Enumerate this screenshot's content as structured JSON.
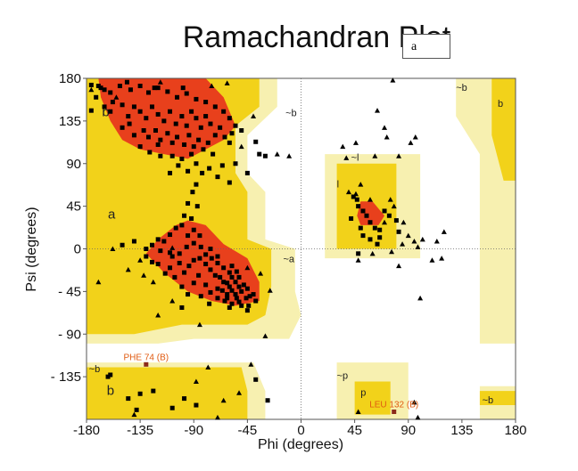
{
  "chart_data": {
    "type": "scatter",
    "title": "Ramachandran Plot",
    "xlabel": "Phi (degrees)",
    "ylabel": "Psi (degrees)",
    "xlim": [
      -180,
      180
    ],
    "ylim": [
      -180,
      180
    ],
    "x_ticks": [
      -180,
      -135,
      -90,
      -45,
      0,
      45,
      90,
      135,
      180
    ],
    "x_tick_labels": [
      "-180",
      "-135",
      "-90",
      "-45",
      "0",
      "45",
      "90",
      "135",
      "180"
    ],
    "y_ticks": [
      180,
      135,
      90,
      45,
      0,
      -45,
      -90,
      -135
    ],
    "y_tick_labels": [
      "180",
      "135",
      "90",
      "45",
      "0",
      "- 45",
      "- 90",
      "- 135"
    ],
    "grid": false,
    "zero_lines": true,
    "colors": {
      "most_favoured": "#e8401c",
      "additional_allowed": "#f2d21a",
      "generously_allowed": "#f7f0b0",
      "point": "#000000",
      "outlier": "#8b2a1a",
      "outlier_label": "#e05a10"
    },
    "region_labels": [
      {
        "text": "b",
        "phi": -167,
        "psi": 140
      },
      {
        "text": "~b",
        "phi": -13,
        "psi": 140
      },
      {
        "text": "a",
        "phi": -162,
        "psi": 32
      },
      {
        "text": "~a",
        "phi": -15,
        "psi": -14
      },
      {
        "text": "~l",
        "phi": 42,
        "psi": 93
      },
      {
        "text": "l",
        "phi": 30,
        "psi": 65
      },
      {
        "text": "~b",
        "phi": 130,
        "psi": 167
      },
      {
        "text": "b",
        "phi": 165,
        "psi": 150
      },
      {
        "text": "~b",
        "phi": -178,
        "psi": -130
      },
      {
        "text": "b",
        "phi": -163,
        "psi": -154
      },
      {
        "text": "~p",
        "phi": 30,
        "psi": -137
      },
      {
        "text": "p",
        "phi": 50,
        "psi": -155
      },
      {
        "text": "~b",
        "phi": 152,
        "psi": -163
      }
    ],
    "outliers": [
      {
        "label": "PHE 74 (B)",
        "phi": -130,
        "psi": -122
      },
      {
        "label": "LEU 132 (B)",
        "phi": 78,
        "psi": -172
      }
    ],
    "points_squares": [
      [
        -176,
        173
      ],
      [
        -170,
        172
      ],
      [
        -168,
        170
      ],
      [
        -165,
        168
      ],
      [
        -160,
        165
      ],
      [
        -152,
        172
      ],
      [
        -143,
        168
      ],
      [
        -135,
        172
      ],
      [
        -128,
        165
      ],
      [
        -120,
        170
      ],
      [
        -112,
        166
      ],
      [
        -104,
        160
      ],
      [
        -96,
        164
      ],
      [
        -88,
        158
      ],
      [
        -80,
        155
      ],
      [
        -72,
        150
      ],
      [
        -65,
        145
      ],
      [
        -60,
        138
      ],
      [
        -55,
        130
      ],
      [
        -50,
        125
      ],
      [
        -172,
        160
      ],
      [
        -165,
        150
      ],
      [
        -160,
        145
      ],
      [
        -158,
        155
      ],
      [
        -150,
        152
      ],
      [
        -145,
        140
      ],
      [
        -140,
        150
      ],
      [
        -135,
        145
      ],
      [
        -130,
        138
      ],
      [
        -125,
        150
      ],
      [
        -120,
        142
      ],
      [
        -115,
        135
      ],
      [
        -110,
        145
      ],
      [
        -105,
        132
      ],
      [
        -100,
        140
      ],
      [
        -96,
        130
      ],
      [
        -92,
        145
      ],
      [
        -88,
        138
      ],
      [
        -84,
        128
      ],
      [
        -80,
        140
      ],
      [
        -76,
        132
      ],
      [
        -72,
        120
      ],
      [
        -68,
        128
      ],
      [
        -64,
        118
      ],
      [
        -60,
        112
      ],
      [
        -58,
        122
      ],
      [
        -150,
        128
      ],
      [
        -144,
        132
      ],
      [
        -140,
        120
      ],
      [
        -132,
        125
      ],
      [
        -128,
        118
      ],
      [
        -122,
        125
      ],
      [
        -118,
        115
      ],
      [
        -112,
        122
      ],
      [
        -108,
        112
      ],
      [
        -104,
        118
      ],
      [
        -98,
        110
      ],
      [
        -94,
        120
      ],
      [
        -90,
        108
      ],
      [
        -86,
        115
      ],
      [
        -82,
        105
      ],
      [
        -78,
        112
      ],
      [
        -74,
        100
      ],
      [
        -92,
        100
      ],
      [
        -100,
        95
      ],
      [
        -88,
        90
      ],
      [
        -95,
        82
      ],
      [
        -83,
        80
      ],
      [
        -77,
        85
      ],
      [
        -135,
        108
      ],
      [
        -127,
        102
      ],
      [
        -118,
        98
      ],
      [
        -120,
        110
      ],
      [
        -108,
        98
      ],
      [
        -103,
        88
      ],
      [
        -110,
        80
      ],
      [
        -66,
        88
      ],
      [
        -70,
        76
      ],
      [
        -38,
        113
      ],
      [
        -35,
        100
      ],
      [
        -30,
        98
      ],
      [
        -88,
        68
      ],
      [
        -91,
        60
      ],
      [
        -95,
        48
      ],
      [
        -98,
        35
      ],
      [
        -92,
        32
      ],
      [
        -87,
        45
      ],
      [
        -100,
        25
      ],
      [
        -90,
        20
      ],
      [
        -85,
        14
      ],
      [
        -95,
        14
      ],
      [
        -105,
        22
      ],
      [
        -110,
        15
      ],
      [
        -115,
        8
      ],
      [
        -120,
        10
      ],
      [
        -125,
        4
      ],
      [
        -130,
        0
      ],
      [
        -118,
        -2
      ],
      [
        -110,
        -4
      ],
      [
        -102,
        -5
      ],
      [
        -96,
        2
      ],
      [
        -90,
        6
      ],
      [
        -84,
        2
      ],
      [
        -80,
        -6
      ],
      [
        -75,
        -10
      ],
      [
        -70,
        -15
      ],
      [
        -65,
        -20
      ],
      [
        -60,
        -25
      ],
      [
        -58,
        -30
      ],
      [
        -55,
        -35
      ],
      [
        -52,
        -40
      ],
      [
        -50,
        -45
      ],
      [
        -48,
        -38
      ],
      [
        -45,
        -42
      ],
      [
        -43,
        -50
      ],
      [
        -60,
        -40
      ],
      [
        -62,
        -48
      ],
      [
        -65,
        -35
      ],
      [
        -68,
        -30
      ],
      [
        -70,
        -42
      ],
      [
        -72,
        -28
      ],
      [
        -76,
        -22
      ],
      [
        -80,
        -16
      ],
      [
        -85,
        -10
      ],
      [
        -90,
        -12
      ],
      [
        -94,
        -18
      ],
      [
        -98,
        -25
      ],
      [
        -102,
        -15
      ],
      [
        -106,
        -30
      ],
      [
        -110,
        -20
      ],
      [
        -114,
        -26
      ],
      [
        -108,
        -8
      ],
      [
        -120,
        -16
      ],
      [
        -86,
        -28
      ],
      [
        -90,
        -36
      ],
      [
        -80,
        -38
      ],
      [
        -76,
        -46
      ],
      [
        -70,
        -52
      ],
      [
        -64,
        -55
      ],
      [
        -58,
        -58
      ],
      [
        -52,
        -56
      ],
      [
        -46,
        -52
      ],
      [
        -40,
        -48
      ],
      [
        -55,
        -48
      ],
      [
        -58,
        -44
      ],
      [
        -62,
        -52
      ],
      [
        -66,
        -44
      ],
      [
        -54,
        -52
      ],
      [
        -50,
        -60
      ],
      [
        -44,
        -60
      ],
      [
        -38,
        -55
      ],
      [
        -62,
        -36
      ],
      [
        -52,
        -30
      ],
      [
        -100,
        -40
      ],
      [
        -95,
        -48
      ],
      [
        -84,
        -50
      ],
      [
        -77,
        -58
      ],
      [
        -60,
        -62
      ],
      [
        -45,
        -65
      ],
      [
        -54,
        -24
      ],
      [
        -58,
        -18
      ],
      [
        -70,
        -8
      ],
      [
        -76,
        0
      ],
      [
        -130,
        -8
      ],
      [
        -125,
        -14
      ],
      [
        -150,
        4
      ],
      [
        -140,
        8
      ],
      [
        -100,
        -62
      ],
      [
        -160,
        -133
      ],
      [
        -162,
        -135
      ],
      [
        -124,
        -150
      ],
      [
        -108,
        -168
      ],
      [
        -98,
        -158
      ],
      [
        -88,
        -165
      ],
      [
        -135,
        -153
      ],
      [
        -38,
        -138
      ],
      [
        -28,
        -160
      ],
      [
        -145,
        -158
      ],
      [
        -138,
        -170
      ],
      [
        47,
        52
      ],
      [
        44,
        55
      ],
      [
        48,
        45
      ],
      [
        52,
        40
      ],
      [
        55,
        35
      ],
      [
        42,
        32
      ],
      [
        58,
        28
      ],
      [
        50,
        22
      ],
      [
        62,
        22
      ],
      [
        66,
        20
      ],
      [
        70,
        40
      ],
      [
        74,
        35
      ],
      [
        80,
        30
      ],
      [
        82,
        18
      ],
      [
        66,
        12
      ],
      [
        58,
        10
      ],
      [
        52,
        14
      ],
      [
        64,
        5
      ],
      [
        48,
        -5
      ],
      [
        -176,
        146
      ],
      [
        -146,
        176
      ],
      [
        -123,
        170
      ],
      [
        -99,
        170
      ],
      [
        -55,
        90
      ],
      [
        -45,
        80
      ],
      [
        -60,
        70
      ]
    ],
    "points_triangles": [
      [
        -176,
        168
      ],
      [
        -155,
        160
      ],
      [
        -118,
        176
      ],
      [
        -75,
        172
      ],
      [
        -62,
        175
      ],
      [
        -40,
        140
      ],
      [
        -50,
        108
      ],
      [
        -108,
        -55
      ],
      [
        -120,
        -70
      ],
      [
        -124,
        -35
      ],
      [
        -108,
        1
      ],
      [
        -132,
        -28
      ],
      [
        -158,
        0
      ],
      [
        -170,
        -35
      ],
      [
        -145,
        -22
      ],
      [
        -85,
        -80
      ],
      [
        -78,
        -125
      ],
      [
        -88,
        -140
      ],
      [
        -65,
        -160
      ],
      [
        -140,
        -175
      ],
      [
        -70,
        -178
      ],
      [
        -52,
        -152
      ],
      [
        -42,
        -122
      ],
      [
        -30,
        -92
      ],
      [
        -26,
        -44
      ],
      [
        -34,
        -26
      ],
      [
        -45,
        -20
      ],
      [
        -20,
        100
      ],
      [
        -10,
        98
      ],
      [
        77,
        178
      ],
      [
        64,
        146
      ],
      [
        70,
        128
      ],
      [
        72,
        118
      ],
      [
        92,
        112
      ],
      [
        96,
        118
      ],
      [
        82,
        98
      ],
      [
        62,
        98
      ],
      [
        46,
        112
      ],
      [
        35,
        108
      ],
      [
        38,
        96
      ],
      [
        40,
        60
      ],
      [
        46,
        58
      ],
      [
        50,
        68
      ],
      [
        58,
        52
      ],
      [
        75,
        52
      ],
      [
        78,
        45
      ],
      [
        70,
        28
      ],
      [
        86,
        28
      ],
      [
        90,
        14
      ],
      [
        95,
        8
      ],
      [
        85,
        5
      ],
      [
        60,
        -5
      ],
      [
        48,
        -12
      ],
      [
        76,
        -3
      ],
      [
        82,
        -18
      ],
      [
        98,
        2
      ],
      [
        102,
        10
      ],
      [
        110,
        -12
      ],
      [
        118,
        -10
      ],
      [
        114,
        8
      ],
      [
        120,
        18
      ],
      [
        100,
        -52
      ],
      [
        48,
        -172
      ],
      [
        95,
        -162
      ],
      [
        98,
        -178
      ],
      [
        -135,
        -12
      ]
    ]
  }
}
